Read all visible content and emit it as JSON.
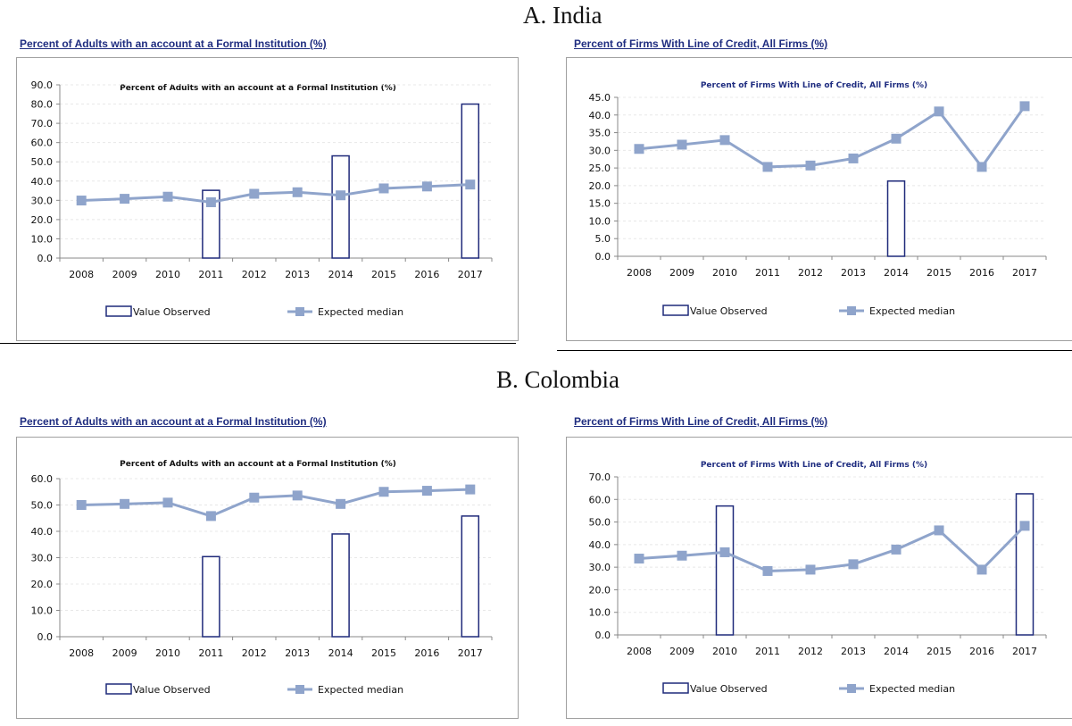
{
  "sections": [
    {
      "title": "A.   India"
    },
    {
      "title": "B.   Colombia"
    }
  ],
  "panels": [
    {
      "heading": "Percent of Adults with an account at a Formal Institution (%)"
    },
    {
      "heading": "Percent of Firms With Line of Credit, All Firms (%)"
    },
    {
      "heading": "Percent of Adults with an account at a Formal Institution (%)"
    },
    {
      "heading": "Percent of Firms With Line of Credit, All Firms (%)"
    }
  ],
  "colors": {
    "bar_outline": "#1f2a7a",
    "line": "#8fa4cb",
    "heading": "#1f2d80",
    "grid": "#e8e8e8"
  },
  "chart_data": [
    {
      "type": "bar",
      "title": "Percent of Adults with an account at a Formal Institution (%)",
      "categories": [
        "2008",
        "2009",
        "2010",
        "2011",
        "2012",
        "2013",
        "2014",
        "2015",
        "2016",
        "2017"
      ],
      "ylim": [
        0,
        90
      ],
      "yticks": [
        "0.0",
        "10.0",
        "20.0",
        "30.0",
        "40.0",
        "50.0",
        "60.0",
        "70.0",
        "80.0",
        "90.0"
      ],
      "series": [
        {
          "name": "Value Observed",
          "type": "bar",
          "values": [
            null,
            null,
            null,
            35.2,
            null,
            null,
            53.1,
            null,
            null,
            80.0
          ]
        },
        {
          "name": "Expected median",
          "type": "line",
          "values": [
            29.9,
            30.8,
            31.9,
            29.0,
            33.4,
            34.2,
            32.6,
            36.2,
            37.2,
            38.2
          ]
        }
      ],
      "legend": "bottom"
    },
    {
      "type": "bar",
      "title": "Percent of Firms With Line of Credit, All Firms (%)",
      "categories": [
        "2008",
        "2009",
        "2010",
        "2011",
        "2012",
        "2013",
        "2014",
        "2015",
        "2016",
        "2017"
      ],
      "ylim": [
        0,
        45
      ],
      "yticks": [
        "0.0",
        "5.0",
        "10.0",
        "15.0",
        "20.0",
        "25.0",
        "30.0",
        "35.0",
        "40.0",
        "45.0"
      ],
      "series": [
        {
          "name": "Value Observed",
          "type": "bar",
          "values": [
            null,
            null,
            null,
            null,
            null,
            null,
            21.3,
            null,
            null,
            null
          ]
        },
        {
          "name": "Expected median",
          "type": "line",
          "values": [
            30.4,
            31.6,
            32.9,
            25.3,
            25.7,
            27.7,
            33.3,
            41.0,
            25.3,
            42.5
          ]
        }
      ],
      "legend": "bottom"
    },
    {
      "type": "bar",
      "title": "Percent of Adults with an account at a Formal Institution (%)",
      "categories": [
        "2008",
        "2009",
        "2010",
        "2011",
        "2012",
        "2013",
        "2014",
        "2015",
        "2016",
        "2017"
      ],
      "ylim": [
        0,
        60
      ],
      "yticks": [
        "0.0",
        "10.0",
        "20.0",
        "30.0",
        "40.0",
        "50.0",
        "60.0"
      ],
      "series": [
        {
          "name": "Value Observed",
          "type": "bar",
          "values": [
            null,
            null,
            null,
            30.4,
            null,
            null,
            39.0,
            null,
            null,
            45.8
          ]
        },
        {
          "name": "Expected median",
          "type": "line",
          "values": [
            50.0,
            50.4,
            50.9,
            45.8,
            52.8,
            53.6,
            50.4,
            55.0,
            55.4,
            55.9
          ]
        }
      ],
      "legend": "bottom"
    },
    {
      "type": "bar",
      "title": "Percent of Firms With Line of Credit, All Firms (%)",
      "categories": [
        "2008",
        "2009",
        "2010",
        "2011",
        "2012",
        "2013",
        "2014",
        "2015",
        "2016",
        "2017"
      ],
      "ylim": [
        0,
        70
      ],
      "yticks": [
        "0.0",
        "10.0",
        "20.0",
        "30.0",
        "40.0",
        "50.0",
        "60.0",
        "70.0"
      ],
      "series": [
        {
          "name": "Value Observed",
          "type": "bar",
          "values": [
            null,
            null,
            57.1,
            null,
            null,
            null,
            null,
            null,
            null,
            62.5
          ]
        },
        {
          "name": "Expected median",
          "type": "line",
          "values": [
            33.8,
            35.1,
            36.6,
            28.3,
            28.9,
            31.3,
            37.8,
            46.3,
            28.9,
            48.3
          ]
        }
      ],
      "legend": "bottom"
    }
  ]
}
